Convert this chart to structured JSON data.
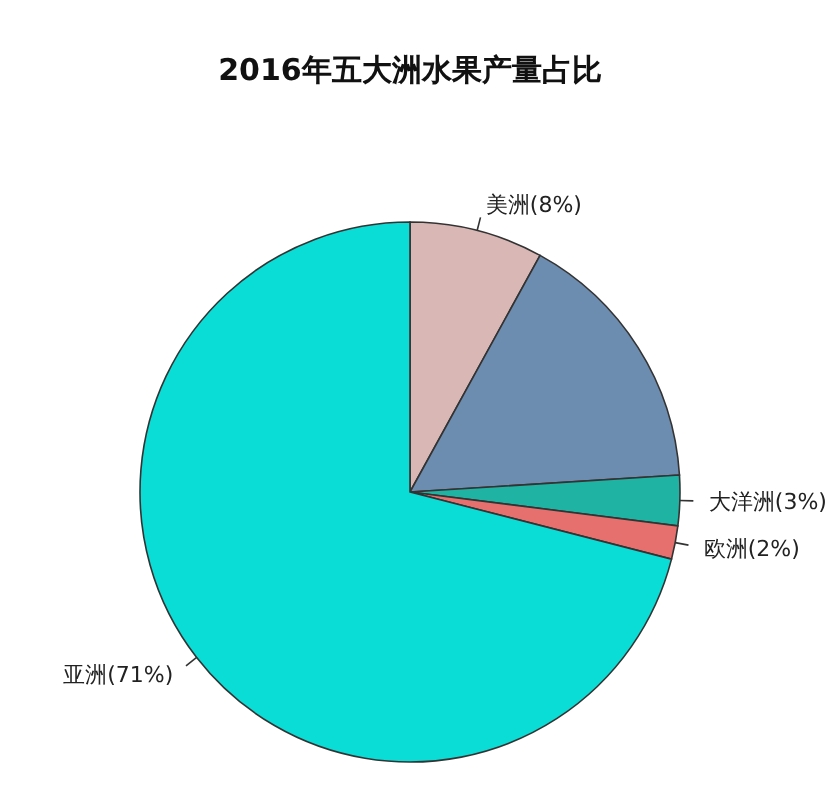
{
  "chart_data": {
    "type": "pie",
    "title": "2016年五大洲水果产量占比",
    "categories": [
      "美洲(8%)",
      null,
      "大洋洲(3%)",
      "欧洲(2%)",
      "亚洲(71%)"
    ],
    "values": [
      8,
      16,
      3,
      2,
      71
    ],
    "colors": [
      "#d8b7b5",
      "#6d8db0",
      "#1fb3a3",
      "#e6706e",
      "#0adcd6"
    ]
  }
}
